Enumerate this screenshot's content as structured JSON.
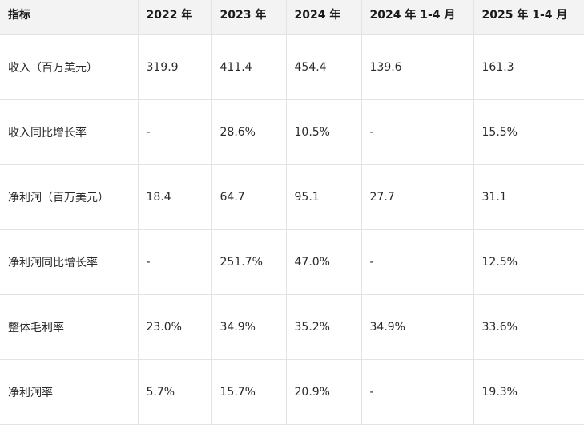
{
  "table": {
    "headers": [
      "指标",
      "2022 年",
      "2023 年",
      "2024 年",
      "2024 年 1-4 月",
      "2025 年 1-4 月"
    ],
    "rows": [
      [
        "收入（百万美元）",
        "319.9",
        "411.4",
        "454.4",
        "139.6",
        "161.3"
      ],
      [
        "收入同比增长率",
        "-",
        "28.6%",
        "10.5%",
        "-",
        "15.5%"
      ],
      [
        "净利润（百万美元）",
        "18.4",
        "64.7",
        "95.1",
        "27.7",
        "31.1"
      ],
      [
        "净利润同比增长率",
        "-",
        "251.7%",
        "47.0%",
        "-",
        "12.5%"
      ],
      [
        "整体毛利率",
        "23.0%",
        "34.9%",
        "35.2%",
        "34.9%",
        "33.6%"
      ],
      [
        "净利润率",
        "5.7%",
        "15.7%",
        "20.9%",
        "-",
        "19.3%"
      ]
    ]
  }
}
